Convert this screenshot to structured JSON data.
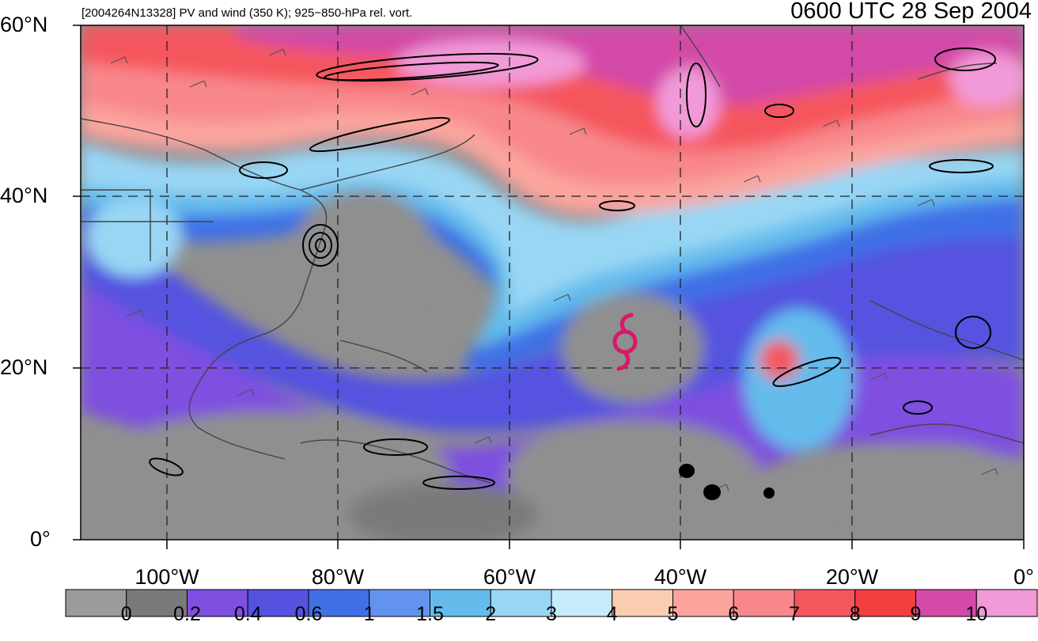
{
  "header": {
    "title_left": "[2004264N13328] PV and wind (350 K); 925−850-hPa rel. vort.",
    "title_right": "0600 UTC 28 Sep 2004"
  },
  "axes": {
    "lat_labels": [
      "60°N",
      "40°N",
      "20°N",
      "0°"
    ],
    "lat_values": [
      60,
      40,
      20,
      0
    ],
    "lon_labels": [
      "100°W",
      "80°W",
      "60°W",
      "40°W",
      "20°W",
      "0°"
    ],
    "lon_values": [
      -100,
      -80,
      -60,
      -40,
      -20,
      0
    ],
    "lon_range": [
      -110,
      0
    ],
    "lat_range": [
      0,
      60
    ],
    "grid": "dashed"
  },
  "colorbar": {
    "labels": [
      "0",
      "0.2",
      "0.4",
      "0.6",
      "1",
      "1.5",
      "2",
      "3",
      "4",
      "5",
      "6",
      "7",
      "8",
      "9",
      "10"
    ],
    "colors": [
      "#9b9b9b",
      "#7a7a7a",
      "#7e4fe0",
      "#5552e0",
      "#3f70e6",
      "#6393ee",
      "#64bbec",
      "#98d6f4",
      "#c6ebfa",
      "#fbcdb0",
      "#fba49e",
      "#f8878c",
      "#f5565d",
      "#f33f3f",
      "#d34aa8",
      "#f19ad8"
    ]
  },
  "storm": {
    "symbol_color": "#d9186a",
    "lat": 23,
    "lon": -47
  }
}
